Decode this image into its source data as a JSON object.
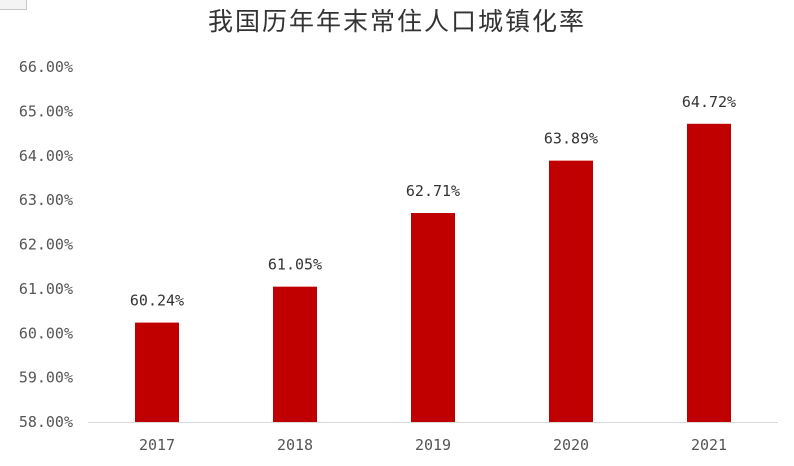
{
  "chart_data": {
    "type": "bar",
    "title": "我国历年年末常住人口城镇化率",
    "xlabel": "",
    "ylabel": "",
    "categories": [
      "2017",
      "2018",
      "2019",
      "2020",
      "2021"
    ],
    "values": [
      60.24,
      61.05,
      62.71,
      63.89,
      64.72
    ],
    "data_labels": [
      "60.24%",
      "61.05%",
      "62.71%",
      "63.89%",
      "64.72%"
    ],
    "ylim": [
      58,
      66
    ],
    "y_ticks": [
      58,
      59,
      60,
      61,
      62,
      63,
      64,
      65,
      66
    ],
    "y_tick_labels": [
      "58.00%",
      "59.00%",
      "60.00%",
      "61.00%",
      "62.00%",
      "63.00%",
      "64.00%",
      "65.00%",
      "66.00%"
    ],
    "grid": false,
    "legend": "none",
    "bar_color": "#c00000",
    "axis_color": "#d9d9d9"
  }
}
